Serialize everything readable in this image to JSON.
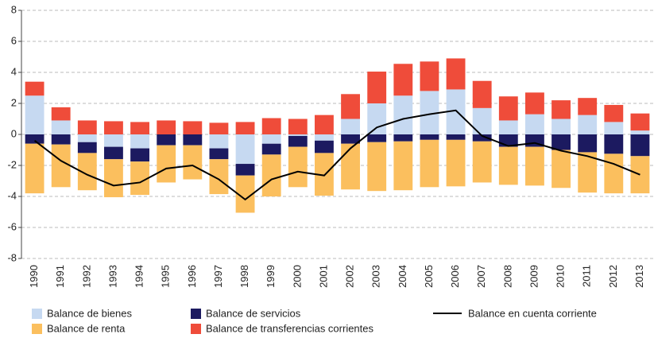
{
  "chart_data": {
    "type": "bar",
    "stacked": true,
    "categories": [
      "1990",
      "1991",
      "1992",
      "1993",
      "1994",
      "1995",
      "1996",
      "1997",
      "1998",
      "1999",
      "2000",
      "2001",
      "2002",
      "2003",
      "2004",
      "2005",
      "2006",
      "2007",
      "2008",
      "2009",
      "2010",
      "2011",
      "2012",
      "2013"
    ],
    "series": [
      {
        "name": "Balance de bienes",
        "color": "#c6d9f1",
        "values": [
          2.5,
          0.9,
          -0.5,
          -0.8,
          -0.9,
          0,
          0,
          -0.9,
          -1.9,
          -0.6,
          -0.1,
          -0.4,
          1.0,
          2.0,
          2.5,
          2.8,
          2.9,
          1.7,
          0.9,
          1.3,
          1.0,
          1.25,
          0.8,
          0.25
        ]
      },
      {
        "name": "Balance de servicios",
        "color": "#1c1a60",
        "values": [
          -0.6,
          -0.65,
          -0.7,
          -0.8,
          -0.85,
          -0.7,
          -0.7,
          -0.7,
          -0.75,
          -0.7,
          -0.7,
          -0.8,
          -0.6,
          -0.5,
          -0.45,
          -0.35,
          -0.35,
          -0.45,
          -0.8,
          -0.8,
          -1.0,
          -1.15,
          -1.25,
          -1.4
        ]
      },
      {
        "name": "Balance de renta",
        "color": "#fbbf5e",
        "values": [
          -3.2,
          -2.75,
          -2.4,
          -2.45,
          -2.15,
          -2.4,
          -2.2,
          -2.25,
          -2.4,
          -2.7,
          -2.6,
          -2.75,
          -2.95,
          -3.15,
          -3.15,
          -3.05,
          -3.0,
          -2.65,
          -2.45,
          -2.5,
          -2.45,
          -2.6,
          -2.55,
          -2.4
        ]
      },
      {
        "name": "Balance de transferencias corrientes",
        "color": "#ef4c3a",
        "values": [
          0.9,
          0.85,
          0.9,
          0.85,
          0.8,
          0.9,
          0.85,
          0.75,
          0.8,
          1.05,
          1.0,
          1.25,
          1.6,
          2.05,
          2.05,
          1.9,
          2.0,
          1.75,
          1.55,
          1.4,
          1.2,
          1.1,
          1.1,
          1.1
        ]
      },
      {
        "name": "Balance en cuenta corriente",
        "type": "line",
        "color": "#000000",
        "values": [
          -0.4,
          -1.7,
          -2.6,
          -3.3,
          -3.1,
          -2.2,
          -2.0,
          -2.9,
          -4.2,
          -2.9,
          -2.4,
          -2.65,
          -0.9,
          0.45,
          1.0,
          1.3,
          1.55,
          -0.1,
          -0.75,
          -0.55,
          -1.05,
          -1.4,
          -1.9,
          -2.6
        ]
      }
    ],
    "ylim": [
      -8,
      8
    ],
    "yticks": [
      -8,
      -6,
      -4,
      -2,
      0,
      2,
      4,
      6,
      8
    ],
    "grid": true
  }
}
